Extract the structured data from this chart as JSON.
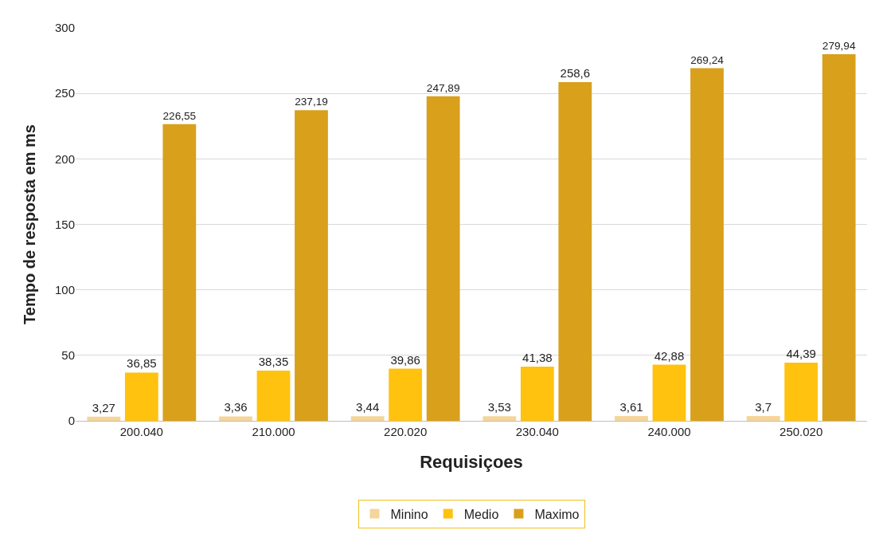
{
  "chart_data": {
    "type": "bar",
    "xlabel": "Requisiçoes",
    "ylabel": "Tempo de resposta em ms",
    "categories": [
      "200.040",
      "210.000",
      "220.020",
      "230.040",
      "240.000",
      "250.020"
    ],
    "series": [
      {
        "name": "Minino",
        "color": "#f5d59a",
        "values": [
          3.27,
          3.36,
          3.44,
          3.53,
          3.61,
          3.7
        ],
        "value_labels": [
          "3,27",
          "3,36",
          "3,44",
          "3,53",
          "3,61",
          "3,7"
        ]
      },
      {
        "name": "Medio",
        "color": "#ffc20e",
        "values": [
          36.85,
          38.35,
          39.86,
          41.38,
          42.88,
          44.39
        ],
        "value_labels": [
          "36,85",
          "38,35",
          "39,86",
          "41,38",
          "42,88",
          "44,39"
        ]
      },
      {
        "name": "Maximo",
        "color": "#d9a01c",
        "values": [
          226.55,
          237.19,
          247.89,
          258.6,
          269.24,
          279.94
        ],
        "value_labels": [
          "226,55",
          "237,19",
          "247,89",
          "258,6",
          "269,24",
          "279,94"
        ]
      }
    ],
    "ylim": [
      0,
      300
    ],
    "yticks": [
      0,
      50,
      100,
      150,
      200,
      250,
      300
    ],
    "grid": "y",
    "legend": "bottom"
  }
}
